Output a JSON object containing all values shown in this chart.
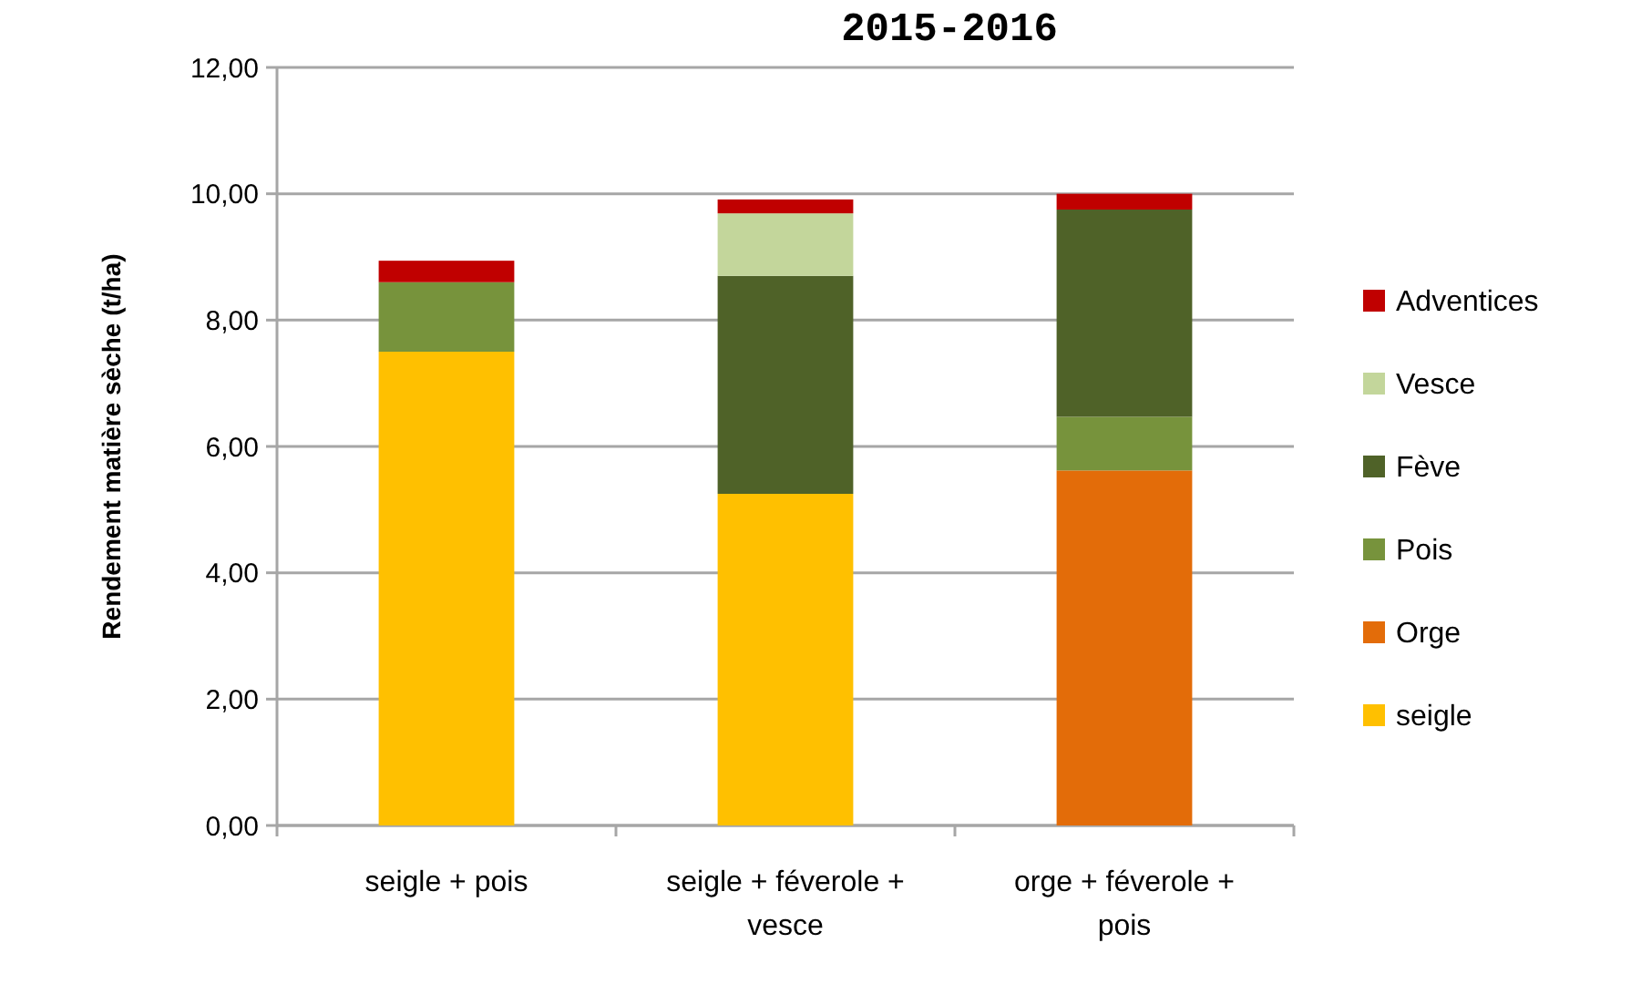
{
  "chart_data": {
    "type": "bar",
    "title": "2015-2016",
    "ylabel": "Rendement matière sèche (t/ha)",
    "categories": [
      "seigle + pois",
      "seigle + féverole + vesce",
      "orge + féverole + pois"
    ],
    "stacked": true,
    "series": [
      {
        "name": "seigle",
        "color": "#ffc000",
        "values": [
          7.5,
          5.25,
          null
        ]
      },
      {
        "name": "Orge",
        "color": "#e36c09",
        "values": [
          null,
          null,
          5.62
        ]
      },
      {
        "name": "Pois",
        "color": "#77933c",
        "values": [
          1.1,
          null,
          0.85
        ]
      },
      {
        "name": "Fève",
        "color": "#4f6228",
        "values": [
          null,
          3.45,
          3.28
        ]
      },
      {
        "name": "Vesce",
        "color": "#c3d69b",
        "values": [
          null,
          0.99,
          null
        ]
      },
      {
        "name": "Adventices",
        "color": "#c00000",
        "values": [
          0.34,
          0.22,
          0.25
        ]
      }
    ],
    "ylim": [
      0,
      12
    ],
    "yticks": [
      {
        "value": 0,
        "label": "0,00"
      },
      {
        "value": 2,
        "label": "2,00"
      },
      {
        "value": 4,
        "label": "4,00"
      },
      {
        "value": 6,
        "label": "6,00"
      },
      {
        "value": 8,
        "label": "8,00"
      },
      {
        "value": 10,
        "label": "10,00"
      },
      {
        "value": 12,
        "label": "12,00"
      }
    ],
    "grid": "y",
    "legend": "right"
  }
}
